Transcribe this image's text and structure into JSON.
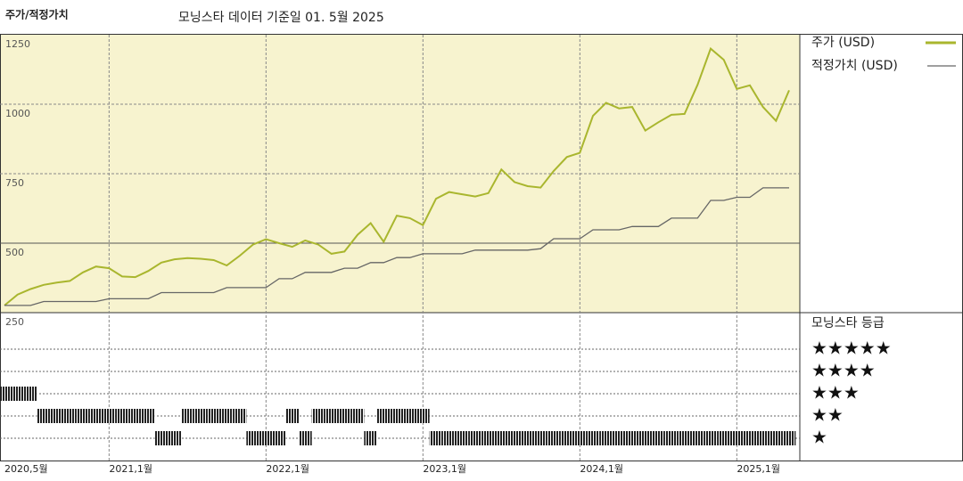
{
  "chart_data": {
    "type": "line",
    "title": "주가/적정가치",
    "subtitle": "모닝스타 데이터 기준일 01. 5월 2025",
    "x": [
      "2020-05",
      "2020-06",
      "2020-07",
      "2020-08",
      "2020-09",
      "2020-10",
      "2020-11",
      "2020-12",
      "2021-01",
      "2021-02",
      "2021-03",
      "2021-04",
      "2021-05",
      "2021-06",
      "2021-07",
      "2021-08",
      "2021-09",
      "2021-10",
      "2021-11",
      "2021-12",
      "2022-01",
      "2022-02",
      "2022-03",
      "2022-04",
      "2022-05",
      "2022-06",
      "2022-07",
      "2022-08",
      "2022-09",
      "2022-10",
      "2022-11",
      "2022-12",
      "2023-01",
      "2023-02",
      "2023-03",
      "2023-04",
      "2023-05",
      "2023-06",
      "2023-07",
      "2023-08",
      "2023-09",
      "2023-10",
      "2023-11",
      "2023-12",
      "2024-01",
      "2024-02",
      "2024-03",
      "2024-04",
      "2024-05",
      "2024-06",
      "2024-07",
      "2024-08",
      "2024-09",
      "2024-10",
      "2024-11",
      "2024-12",
      "2025-01",
      "2025-02",
      "2025-03",
      "2025-04",
      "2025-05"
    ],
    "series": [
      {
        "name": "주가 (USD)",
        "color": "#a9b62e",
        "values": [
          276,
          315,
          335,
          350,
          358,
          364,
          395,
          416,
          410,
          380,
          378,
          400,
          430,
          442,
          446,
          444,
          439,
          420,
          455,
          495,
          514,
          500,
          487,
          510,
          495,
          462,
          470,
          530,
          572,
          505,
          599,
          590,
          565,
          660,
          684,
          676,
          668,
          680,
          765,
          720,
          705,
          700,
          760,
          810,
          825,
          958,
          1005,
          985,
          990,
          905,
          935,
          962,
          965,
          1070,
          1200,
          1160,
          1055,
          1068,
          990,
          940,
          1050
        ]
      },
      {
        "name": "적정가치 (USD)",
        "color": "#666666",
        "values": [
          276,
          276,
          276,
          290,
          290,
          290,
          290,
          290,
          300,
          300,
          300,
          300,
          322,
          322,
          322,
          322,
          322,
          340,
          340,
          340,
          340,
          372,
          372,
          395,
          395,
          395,
          410,
          410,
          430,
          430,
          448,
          448,
          462,
          462,
          462,
          462,
          475,
          475,
          475,
          475,
          475,
          480,
          516,
          516,
          516,
          548,
          548,
          548,
          560,
          560,
          560,
          590,
          590,
          590,
          654,
          654,
          665,
          665,
          699,
          699,
          699
        ]
      }
    ],
    "ylim": [
      250,
      1250
    ],
    "yticks": [
      250,
      500,
      750,
      1000,
      1250
    ],
    "xticks": [
      {
        "value": "2020-05",
        "label": "2020,5월"
      },
      {
        "value": "2021-01",
        "label": "2021,1월"
      },
      {
        "value": "2022-01",
        "label": "2022,1월"
      },
      {
        "value": "2023-01",
        "label": "2023,1월"
      },
      {
        "value": "2024-01",
        "label": "2024,1월"
      },
      {
        "value": "2025-01",
        "label": "2025,1월"
      }
    ],
    "grid": true,
    "rating": {
      "title": "모닝스타 등급",
      "color": "#222222",
      "levels": [
        {
          "value": 5,
          "label": "★★★★★"
        },
        {
          "value": 4,
          "label": "★★★★"
        },
        {
          "value": 3,
          "label": "★★★"
        },
        {
          "value": 2,
          "label": "★★"
        },
        {
          "value": 1,
          "label": "★"
        }
      ],
      "values": [
        3,
        3,
        3,
        2,
        2,
        2,
        2,
        2,
        2,
        2,
        2,
        2,
        1,
        1,
        2,
        2,
        2,
        2,
        2,
        1,
        1,
        1,
        2,
        1,
        2,
        2,
        2,
        2,
        1,
        2,
        2,
        2,
        2,
        1,
        1,
        1,
        1,
        1,
        1,
        1,
        1,
        1,
        1,
        1,
        1,
        1,
        1,
        1,
        1,
        1,
        1,
        1,
        1,
        1,
        1,
        1,
        1,
        1,
        1,
        1,
        1
      ]
    }
  }
}
